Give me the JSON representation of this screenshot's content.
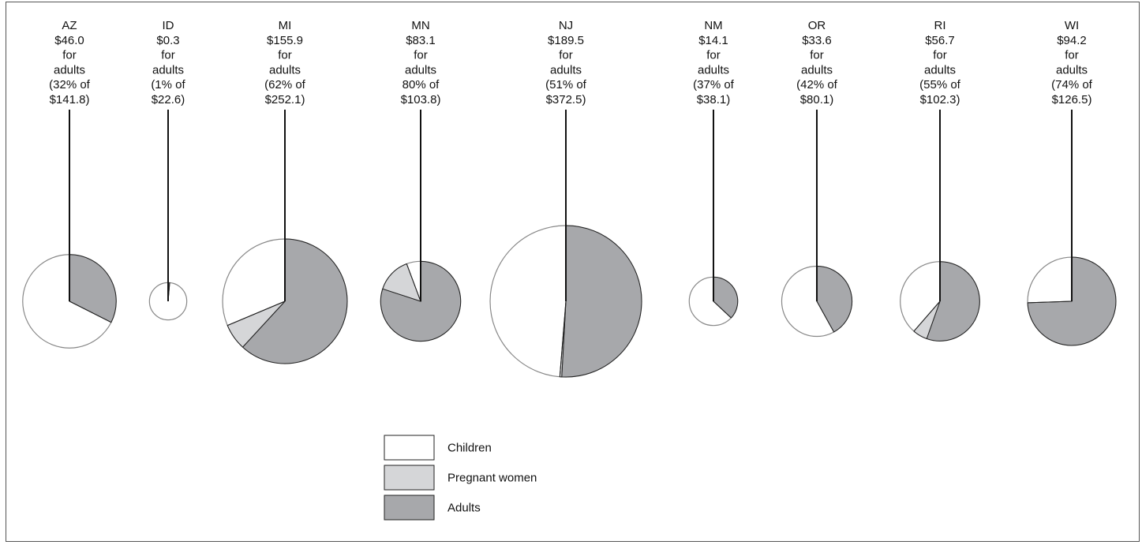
{
  "chart_data": {
    "type": "pie",
    "title": "",
    "colors": {
      "children": "#ffffff",
      "pregnant": "#d5d6d8",
      "adults": "#a7a8ab",
      "outline": "#222222",
      "light_outline": "#888888"
    },
    "legend": {
      "placement": "bottom-center",
      "items": [
        {
          "key": "children",
          "label": "Children"
        },
        {
          "key": "pregnant",
          "label": "Pregnant women"
        },
        {
          "key": "adults",
          "label": "Adults"
        }
      ]
    },
    "pies": [
      {
        "state": "AZ",
        "lines": [
          "AZ",
          "$46.0",
          "for",
          "adults",
          "(32% of",
          "$141.8)"
        ],
        "total": 141.8,
        "adults": 46.0,
        "pregnant": 0,
        "children": 95.8
      },
      {
        "state": "ID",
        "lines": [
          "ID",
          "$0.3",
          "for",
          "adults",
          "(1% of",
          "$22.6)"
        ],
        "total": 22.6,
        "adults": 0.3,
        "pregnant": 0,
        "children": 22.3
      },
      {
        "state": "MI",
        "lines": [
          "MI",
          "$155.9",
          "for",
          "adults",
          "(62% of",
          "$252.1)"
        ],
        "total": 252.1,
        "adults": 155.9,
        "pregnant": 17.2,
        "children": 79.0
      },
      {
        "state": "MN",
        "lines": [
          "MN",
          "$83.1",
          "for",
          "adults",
          "80% of",
          "$103.8)"
        ],
        "total": 103.8,
        "adults": 83.1,
        "pregnant": 14.8,
        "children": 5.9
      },
      {
        "state": "NJ",
        "lines": [
          "NJ",
          "$189.5",
          "for",
          "adults",
          "(51% of",
          "$372.5)"
        ],
        "total": 372.5,
        "adults": 189.5,
        "pregnant": 1.5,
        "children": 181.5
      },
      {
        "state": "NM",
        "lines": [
          "NM",
          "$14.1",
          "for",
          "adults",
          "(37% of",
          "$38.1)"
        ],
        "total": 38.1,
        "adults": 14.1,
        "pregnant": 0,
        "children": 24.0
      },
      {
        "state": "OR",
        "lines": [
          "OR",
          "$33.6",
          "for",
          "adults",
          "(42% of",
          "$80.1)"
        ],
        "total": 80.1,
        "adults": 33.6,
        "pregnant": 0,
        "children": 46.5
      },
      {
        "state": "RI",
        "lines": [
          "RI",
          "$56.7",
          "for",
          "adults",
          "(55% of",
          "$102.3)"
        ],
        "total": 102.3,
        "adults": 56.7,
        "pregnant": 6.1,
        "children": 39.5
      },
      {
        "state": "WI",
        "lines": [
          "WI",
          "$94.2",
          "for",
          "adults",
          "(74% of",
          "$126.5)"
        ],
        "total": 126.5,
        "adults": 94.2,
        "pregnant": 0,
        "children": 32.3
      }
    ]
  }
}
